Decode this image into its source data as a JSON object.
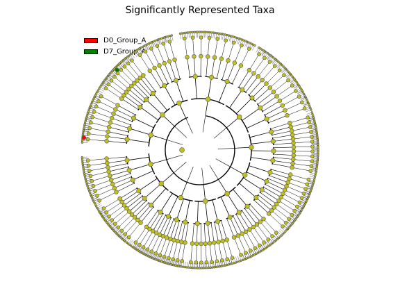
{
  "title": "Significantly Represented Taxa",
  "legend": [
    {
      "label": "D0_Group_A",
      "color": "#ff0000"
    },
    {
      "label": "D7_Group_A",
      "color": "#008000"
    }
  ],
  "colors": {
    "node_default": "#bfbf1f",
    "node_stroke": "#555555",
    "branch": "#000000"
  },
  "highlighted_nodes": [
    {
      "group": "D0_Group_A",
      "color": "#ff0000",
      "sector": "left"
    },
    {
      "group": "D7_Group_A",
      "color": "#008000",
      "sector": "upper-left"
    }
  ]
}
